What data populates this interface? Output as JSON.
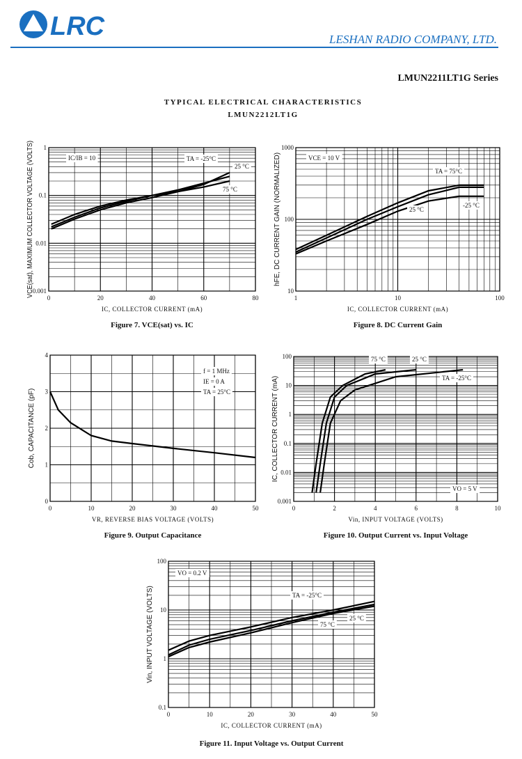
{
  "header": {
    "logo": "LRC",
    "company": "LESHAN RADIO COMPANY, LTD.",
    "series": "LMUN2211LT1G Series"
  },
  "section": {
    "title": "TYPICAL ELECTRICAL CHARACTERISTICS",
    "subtitle": "LMUN2212LT1G"
  },
  "chart_data": [
    {
      "type": "line",
      "title": "Figure 7. VCE(sat) vs. IC",
      "x_label": "IC, COLLECTOR CURRENT (mA)",
      "y_label": "VCE(sat), MAXIMUM COLLECTOR VOLTAGE (VOLTS)",
      "xlim": [
        0,
        80
      ],
      "xticks": [
        0,
        20,
        40,
        60,
        80
      ],
      "ylim": [
        0.001,
        1
      ],
      "yticks": [
        1,
        0.1,
        0.01,
        0.001
      ],
      "y_log": true,
      "grid": true,
      "annotations": [
        "IC/IB = 10"
      ],
      "series": [
        {
          "name": "TA = -25°C",
          "color": "#000000",
          "x": [
            1,
            10,
            20,
            30,
            40,
            50,
            60,
            70
          ],
          "values": [
            0.025,
            0.04,
            0.06,
            0.08,
            0.1,
            0.13,
            0.18,
            0.25
          ]
        },
        {
          "name": "25 °C",
          "color": "#000000",
          "x": [
            1,
            10,
            20,
            30,
            40,
            50,
            60,
            70
          ],
          "values": [
            0.022,
            0.035,
            0.055,
            0.075,
            0.1,
            0.12,
            0.17,
            0.3
          ]
        },
        {
          "name": "75 °C",
          "color": "#000000",
          "x": [
            1,
            10,
            20,
            30,
            40,
            50,
            60,
            70
          ],
          "values": [
            0.02,
            0.032,
            0.05,
            0.07,
            0.09,
            0.12,
            0.15,
            0.2
          ]
        }
      ]
    },
    {
      "type": "line",
      "title": "Figure 8. DC Current Gain",
      "x_label": "IC, COLLECTOR CURRENT (mA)",
      "y_label": "hFE, DC CURRENT GAIN (NORMALIZED)",
      "xlim": [
        1,
        100
      ],
      "xticks": [
        1,
        10,
        100
      ],
      "x_log": true,
      "ylim": [
        10,
        1000
      ],
      "yticks": [
        1000,
        100,
        10
      ],
      "y_log": true,
      "grid": true,
      "annotations": [
        "VCE = 10 V"
      ],
      "series": [
        {
          "name": "TA = 75°C",
          "color": "#000000",
          "x": [
            1,
            2,
            5,
            10,
            20,
            40,
            70
          ],
          "values": [
            38,
            60,
            110,
            170,
            250,
            300,
            300
          ]
        },
        {
          "name": "25 °C",
          "color": "#000000",
          "x": [
            1,
            2,
            5,
            10,
            20,
            40,
            70
          ],
          "values": [
            35,
            55,
            100,
            150,
            220,
            280,
            280
          ]
        },
        {
          "name": "-25 °C",
          "color": "#000000",
          "x": [
            1,
            2,
            5,
            10,
            20,
            40,
            70
          ],
          "values": [
            33,
            50,
            85,
            130,
            180,
            210,
            210
          ]
        }
      ]
    },
    {
      "type": "line",
      "title": "Figure 9. Output Capacitance",
      "x_label": "VR, REVERSE BIAS VOLTAGE (VOLTS)",
      "y_label": "Cob, CAPACITANCE (pF)",
      "xlim": [
        0,
        50
      ],
      "xticks": [
        0,
        10,
        20,
        30,
        40,
        50
      ],
      "ylim": [
        0,
        4
      ],
      "yticks": [
        4,
        3,
        2,
        1,
        0
      ],
      "grid": true,
      "annotations": [
        "f = 1 MHz",
        "IE = 0 A",
        "TA = 25°C"
      ],
      "series": [
        {
          "color": "#000000",
          "x": [
            0,
            2,
            5,
            10,
            15,
            20,
            30,
            40,
            50
          ],
          "values": [
            3,
            2.5,
            2.15,
            1.8,
            1.65,
            1.58,
            1.45,
            1.33,
            1.2
          ]
        }
      ]
    },
    {
      "type": "line",
      "title": "Figure 10. Output Current vs. Input Voltage",
      "x_label": "Vin, INPUT VOLTAGE (VOLTS)",
      "y_label": "IC, COLLECTOR CURRENT (mA)",
      "xlim": [
        0,
        10
      ],
      "xticks": [
        0,
        2,
        4,
        6,
        8,
        10
      ],
      "ylim": [
        0.001,
        100
      ],
      "yticks": [
        100,
        10,
        1,
        0.1,
        0.01,
        0.001
      ],
      "y_log": true,
      "grid": true,
      "annotations": [
        "VO = 5 V"
      ],
      "series": [
        {
          "name": "75 °C",
          "color": "#000000",
          "x": [
            0.9,
            1.1,
            1.4,
            1.8,
            2.4,
            3.5,
            4.5
          ],
          "values": [
            0.002,
            0.02,
            0.5,
            4,
            10,
            25,
            35
          ]
        },
        {
          "name": "25 °C",
          "color": "#000000",
          "x": [
            1.1,
            1.3,
            1.6,
            2,
            2.6,
            4,
            6
          ],
          "values": [
            0.002,
            0.02,
            0.5,
            4,
            10,
            25,
            35
          ]
        },
        {
          "name": "TA = -25°C",
          "color": "#000000",
          "x": [
            1.3,
            1.5,
            1.8,
            2.3,
            3,
            5,
            8.3
          ],
          "values": [
            0.002,
            0.02,
            0.5,
            3,
            7,
            20,
            35
          ]
        }
      ]
    },
    {
      "type": "line",
      "title": "Figure 11. Input Voltage vs. Output Current",
      "x_label": "IC, COLLECTOR CURRENT (mA)",
      "y_label": "Vin, INPUT VOLTAGE (VOLTS)",
      "xlim": [
        0,
        50
      ],
      "xticks": [
        0,
        10,
        20,
        30,
        40,
        50
      ],
      "ylim": [
        0.1,
        100
      ],
      "yticks": [
        100,
        10,
        1,
        0.1
      ],
      "y_log": true,
      "grid": true,
      "annotations": [
        "VO = 0.2 V"
      ],
      "series": [
        {
          "name": "TA = -25°C",
          "color": "#000000",
          "x": [
            0,
            5,
            10,
            20,
            30,
            40,
            50
          ],
          "values": [
            1.5,
            2.3,
            3,
            4.5,
            7,
            10,
            15
          ]
        },
        {
          "name": "25 °C",
          "color": "#000000",
          "x": [
            0,
            5,
            10,
            20,
            30,
            40,
            50
          ],
          "values": [
            1.2,
            1.9,
            2.5,
            3.8,
            6,
            9,
            13
          ]
        },
        {
          "name": "75 °C",
          "color": "#000000",
          "x": [
            0,
            5,
            10,
            20,
            30,
            40,
            50
          ],
          "values": [
            1.1,
            1.7,
            2.2,
            3.4,
            5.5,
            8.5,
            12
          ]
        }
      ]
    }
  ]
}
